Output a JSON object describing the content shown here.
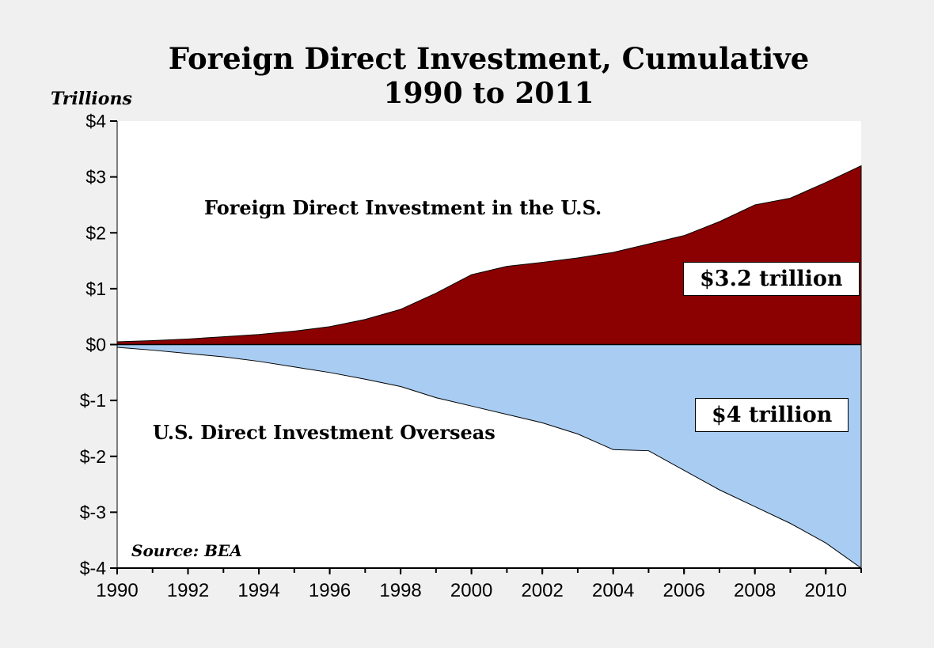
{
  "header": {
    "title_line1": "Foreign Direct Investment, Cumulative",
    "title_line2": "1990 to 2011"
  },
  "axis_unit_label": "Trillions",
  "source": "Source: BEA",
  "series_labels": {
    "us_inbound": "Foreign Direct Investment in the U.S.",
    "us_outbound": "U.S. Direct Investment Overseas"
  },
  "annotations": {
    "inbound_total": "$3.2 trillion",
    "outbound_total": "$4 trillion"
  },
  "colors": {
    "inbound_area": "#8B0000",
    "outbound_area": "#A8CCF2",
    "background": "#F0F0F0",
    "plot_background": "#FFFFFF",
    "axis": "#000000"
  },
  "chart_data": {
    "type": "area",
    "title": "Foreign Direct Investment, Cumulative 1990 to 2011",
    "ylabel": "Trillions",
    "xlabel": "",
    "ylim": [
      -4,
      4
    ],
    "grid": false,
    "legend_position": "none",
    "x": [
      1990,
      1991,
      1992,
      1993,
      1994,
      1995,
      1996,
      1997,
      1998,
      1999,
      2000,
      2001,
      2002,
      2003,
      2004,
      2005,
      2006,
      2007,
      2008,
      2009,
      2010,
      2011
    ],
    "series": [
      {
        "name": "Foreign Direct Investment in the U.S.",
        "color": "#8B0000",
        "final_value_label": "$3.2 trillion",
        "values": [
          0.05,
          0.07,
          0.1,
          0.14,
          0.18,
          0.24,
          0.32,
          0.45,
          0.63,
          0.92,
          1.25,
          1.4,
          1.47,
          1.55,
          1.65,
          1.8,
          1.95,
          2.2,
          2.5,
          2.62,
          2.9,
          3.2
        ]
      },
      {
        "name": "U.S. Direct Investment Overseas",
        "color": "#A8CCF2",
        "final_value_label": "$4 trillion",
        "values": [
          -0.05,
          -0.1,
          -0.16,
          -0.22,
          -0.3,
          -0.4,
          -0.5,
          -0.62,
          -0.75,
          -0.95,
          -1.1,
          -1.25,
          -1.4,
          -1.6,
          -1.88,
          -1.9,
          -2.25,
          -2.6,
          -2.9,
          -3.2,
          -3.55,
          -4.0
        ]
      }
    ],
    "y_ticks": [
      4,
      3,
      2,
      1,
      0,
      -1,
      -2,
      -3,
      -4
    ],
    "y_tick_labels": [
      "$4",
      "$3",
      "$2",
      "$1",
      "$0",
      "$-1",
      "$-2",
      "$-3",
      "$-4"
    ],
    "x_tick_years": [
      1990,
      1992,
      1994,
      1996,
      1998,
      2000,
      2002,
      2004,
      2006,
      2008,
      2010
    ],
    "x_tick_labels": [
      "1990",
      "1992",
      "1994",
      "1996",
      "1998",
      "2000",
      "2002",
      "2004",
      "2006",
      "2008",
      "2010"
    ]
  }
}
